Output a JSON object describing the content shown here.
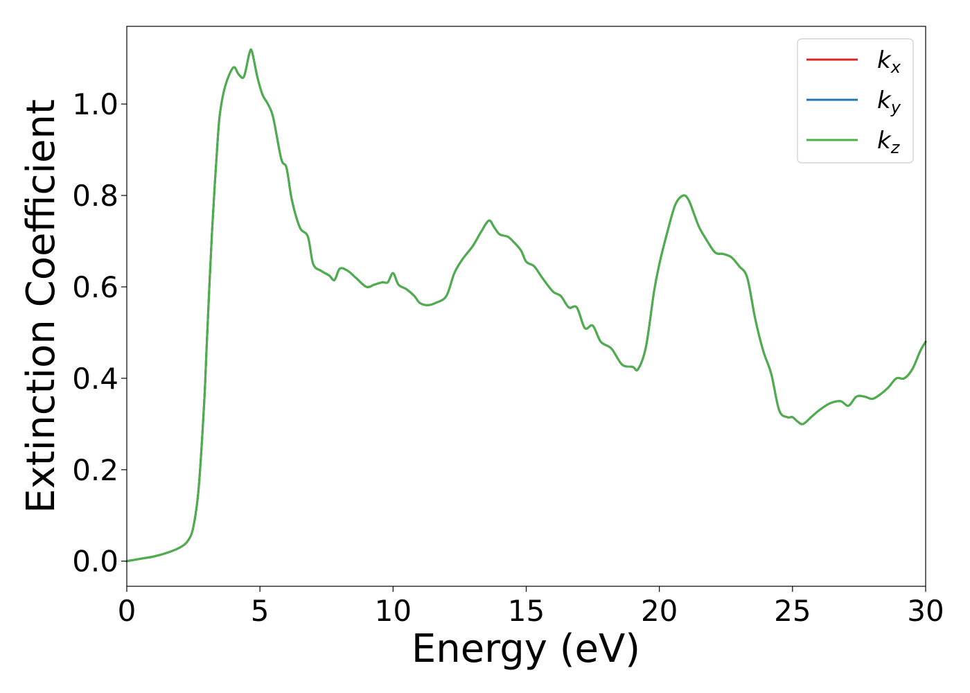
{
  "chart_data": {
    "type": "line",
    "title": "",
    "xlabel": "Energy (eV)",
    "ylabel": "Extinction Coefficient",
    "xlim": [
      0,
      30
    ],
    "ylim": [
      -0.055,
      1.17
    ],
    "xticks": [
      0,
      5,
      10,
      15,
      20,
      25,
      30
    ],
    "xtick_labels": [
      "0",
      "5",
      "10",
      "15",
      "20",
      "25",
      "30"
    ],
    "yticks": [
      0.0,
      0.2,
      0.4,
      0.6,
      0.8,
      1.0
    ],
    "ytick_labels": [
      "0.0",
      "0.2",
      "0.4",
      "0.6",
      "0.8",
      "1.0"
    ],
    "grid": false,
    "legend_position": "top-right",
    "x": [
      0,
      0.5,
      1.0,
      1.5,
      2.0,
      2.3,
      2.5,
      2.7,
      2.9,
      3.0,
      3.1,
      3.2,
      3.3,
      3.4,
      3.5,
      3.7,
      4.0,
      4.2,
      4.4,
      4.6,
      4.7,
      4.9,
      5.1,
      5.3,
      5.5,
      5.8,
      6.0,
      6.2,
      6.5,
      6.8,
      7.0,
      7.3,
      7.6,
      7.8,
      8.0,
      8.3,
      8.6,
      9.0,
      9.3,
      9.6,
      9.8,
      10.0,
      10.2,
      10.5,
      10.8,
      11.0,
      11.3,
      11.6,
      12.0,
      12.3,
      12.6,
      13.0,
      13.3,
      13.6,
      13.8,
      14.0,
      14.3,
      14.5,
      14.8,
      15.0,
      15.3,
      15.6,
      16.0,
      16.3,
      16.6,
      16.9,
      17.2,
      17.5,
      17.8,
      18.2,
      18.6,
      19.0,
      19.2,
      19.5,
      19.8,
      20.0,
      20.3,
      20.6,
      20.9,
      21.1,
      21.3,
      21.5,
      21.8,
      22.1,
      22.4,
      22.7,
      23.0,
      23.3,
      23.6,
      23.9,
      24.2,
      24.5,
      24.8,
      25.0,
      25.2,
      25.4,
      25.7,
      26.0,
      26.4,
      26.8,
      27.1,
      27.4,
      27.7,
      28.0,
      28.3,
      28.6,
      28.9,
      29.2,
      29.5,
      29.8,
      30.0
    ],
    "series": [
      {
        "name": "k_x",
        "color": "#d62728",
        "values": [
          0.0,
          0.005,
          0.01,
          0.018,
          0.03,
          0.045,
          0.075,
          0.16,
          0.34,
          0.47,
          0.6,
          0.72,
          0.82,
          0.91,
          0.98,
          1.04,
          1.08,
          1.065,
          1.06,
          1.11,
          1.115,
          1.06,
          1.02,
          1.0,
          0.97,
          0.88,
          0.86,
          0.79,
          0.73,
          0.71,
          0.65,
          0.635,
          0.625,
          0.615,
          0.64,
          0.635,
          0.62,
          0.6,
          0.605,
          0.61,
          0.61,
          0.63,
          0.605,
          0.595,
          0.58,
          0.565,
          0.56,
          0.565,
          0.58,
          0.63,
          0.66,
          0.69,
          0.72,
          0.745,
          0.73,
          0.715,
          0.71,
          0.7,
          0.68,
          0.655,
          0.645,
          0.62,
          0.59,
          0.58,
          0.555,
          0.555,
          0.51,
          0.515,
          0.48,
          0.465,
          0.43,
          0.425,
          0.42,
          0.47,
          0.59,
          0.65,
          0.72,
          0.78,
          0.8,
          0.79,
          0.76,
          0.73,
          0.7,
          0.675,
          0.672,
          0.665,
          0.645,
          0.62,
          0.53,
          0.46,
          0.41,
          0.33,
          0.315,
          0.315,
          0.305,
          0.3,
          0.315,
          0.33,
          0.345,
          0.35,
          0.34,
          0.36,
          0.36,
          0.355,
          0.365,
          0.38,
          0.4,
          0.4,
          0.42,
          0.46,
          0.48
        ]
      },
      {
        "name": "k_y",
        "color": "#1f77b4",
        "values": [
          0.0,
          0.005,
          0.01,
          0.018,
          0.03,
          0.045,
          0.075,
          0.16,
          0.34,
          0.47,
          0.6,
          0.72,
          0.82,
          0.91,
          0.98,
          1.04,
          1.08,
          1.065,
          1.06,
          1.11,
          1.115,
          1.06,
          1.02,
          1.0,
          0.97,
          0.88,
          0.86,
          0.79,
          0.73,
          0.71,
          0.65,
          0.635,
          0.625,
          0.615,
          0.64,
          0.635,
          0.62,
          0.6,
          0.605,
          0.61,
          0.61,
          0.63,
          0.605,
          0.595,
          0.58,
          0.565,
          0.56,
          0.565,
          0.58,
          0.63,
          0.66,
          0.69,
          0.72,
          0.745,
          0.73,
          0.715,
          0.71,
          0.7,
          0.68,
          0.655,
          0.645,
          0.62,
          0.59,
          0.58,
          0.555,
          0.555,
          0.51,
          0.515,
          0.48,
          0.465,
          0.43,
          0.425,
          0.42,
          0.47,
          0.59,
          0.65,
          0.72,
          0.78,
          0.8,
          0.79,
          0.76,
          0.73,
          0.7,
          0.675,
          0.672,
          0.665,
          0.645,
          0.62,
          0.53,
          0.46,
          0.41,
          0.33,
          0.315,
          0.315,
          0.305,
          0.3,
          0.315,
          0.33,
          0.345,
          0.35,
          0.34,
          0.36,
          0.36,
          0.355,
          0.365,
          0.38,
          0.4,
          0.4,
          0.42,
          0.46,
          0.48
        ]
      },
      {
        "name": "k_z",
        "color": "#4daf4a",
        "values": [
          0.0,
          0.005,
          0.01,
          0.018,
          0.03,
          0.045,
          0.075,
          0.16,
          0.34,
          0.47,
          0.6,
          0.72,
          0.82,
          0.91,
          0.98,
          1.04,
          1.08,
          1.065,
          1.06,
          1.11,
          1.115,
          1.06,
          1.02,
          1.0,
          0.97,
          0.88,
          0.86,
          0.79,
          0.73,
          0.71,
          0.65,
          0.635,
          0.625,
          0.615,
          0.64,
          0.635,
          0.62,
          0.6,
          0.605,
          0.61,
          0.61,
          0.63,
          0.605,
          0.595,
          0.58,
          0.565,
          0.56,
          0.565,
          0.58,
          0.63,
          0.66,
          0.69,
          0.72,
          0.745,
          0.73,
          0.715,
          0.71,
          0.7,
          0.68,
          0.655,
          0.645,
          0.62,
          0.59,
          0.58,
          0.555,
          0.555,
          0.51,
          0.515,
          0.48,
          0.465,
          0.43,
          0.425,
          0.42,
          0.47,
          0.59,
          0.65,
          0.72,
          0.78,
          0.8,
          0.79,
          0.76,
          0.73,
          0.7,
          0.675,
          0.672,
          0.665,
          0.645,
          0.62,
          0.53,
          0.46,
          0.41,
          0.33,
          0.315,
          0.315,
          0.305,
          0.3,
          0.315,
          0.33,
          0.345,
          0.35,
          0.34,
          0.36,
          0.36,
          0.355,
          0.365,
          0.38,
          0.4,
          0.4,
          0.42,
          0.46,
          0.48
        ]
      }
    ],
    "legend": [
      {
        "symbol": "k",
        "subscript": "x",
        "color": "#d62728"
      },
      {
        "symbol": "k",
        "subscript": "y",
        "color": "#1f77b4"
      },
      {
        "symbol": "k",
        "subscript": "z",
        "color": "#4daf4a"
      }
    ]
  }
}
